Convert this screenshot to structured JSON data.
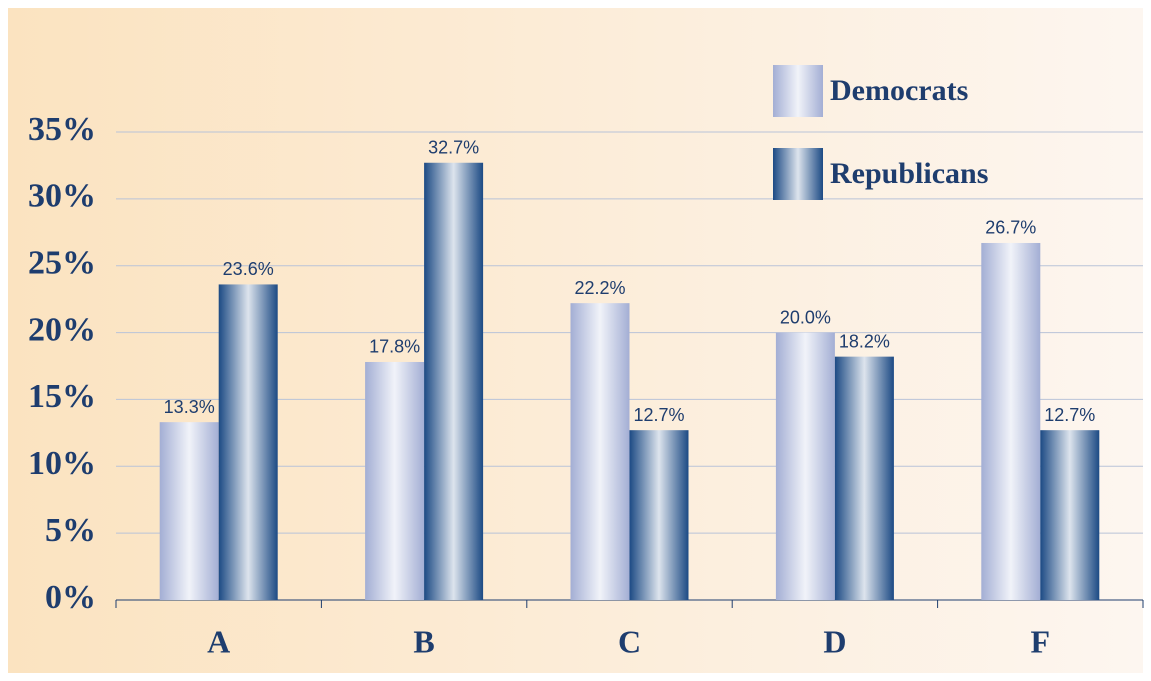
{
  "chart_data": {
    "type": "bar",
    "categories": [
      "A",
      "B",
      "C",
      "D",
      "F"
    ],
    "series": [
      {
        "name": "Democrats",
        "color": "#a3aed4",
        "values": [
          13.3,
          17.8,
          22.2,
          20.0,
          26.7
        ],
        "value_labels": [
          "13.3%",
          "17.8%",
          "22.2%",
          "20.0%",
          "26.7%"
        ]
      },
      {
        "name": "Republicans",
        "color": "#1c4a84",
        "values": [
          23.6,
          32.7,
          12.7,
          18.2,
          12.7
        ],
        "value_labels": [
          "23.6%",
          "32.7%",
          "12.7%",
          "18.2%",
          "12.7%"
        ]
      }
    ],
    "ylim": [
      0,
      35
    ],
    "yticks": [
      {
        "value": 0,
        "label": "0%"
      },
      {
        "value": 5,
        "label": "5%"
      },
      {
        "value": 10,
        "label": "10%"
      },
      {
        "value": 15,
        "label": "15%"
      },
      {
        "value": 20,
        "label": "20%"
      },
      {
        "value": 25,
        "label": "25%"
      },
      {
        "value": 30,
        "label": "30%"
      },
      {
        "value": 35,
        "label": "35%"
      }
    ],
    "grid": true,
    "legend": "upper right"
  }
}
